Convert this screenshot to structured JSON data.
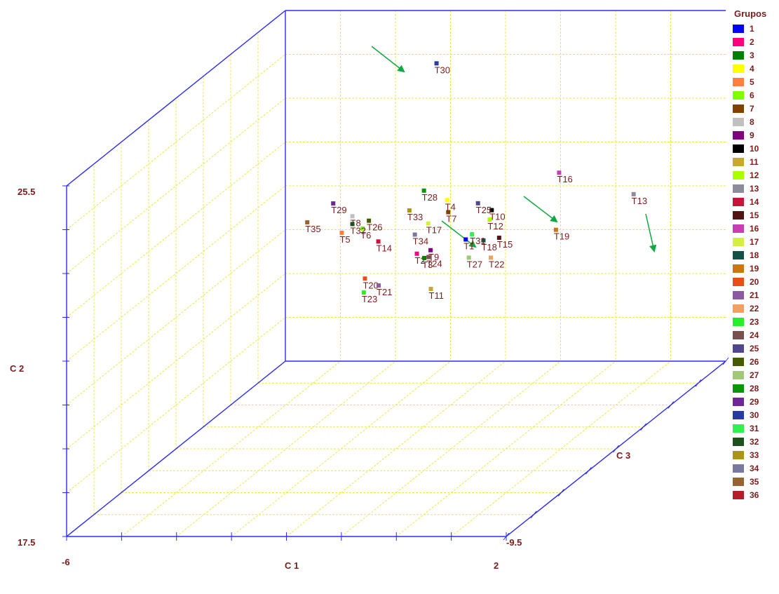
{
  "chart_data": {
    "type": "scatter",
    "subtype": "3d",
    "xlabel": "C 1",
    "ylabel": "C 2",
    "zlabel": "C 3",
    "x_ticklabels": [
      "-6",
      "2"
    ],
    "y_ticklabels": [
      "17.5",
      "25.5"
    ],
    "z_ticklabels": [
      "-9.5"
    ],
    "grid": true,
    "legend": {
      "title": "Grupos",
      "placement": "right",
      "entries": [
        {
          "label": "1",
          "color": "#0000ff"
        },
        {
          "label": "2",
          "color": "#ff007f"
        },
        {
          "label": "3",
          "color": "#008000"
        },
        {
          "label": "4",
          "color": "#ffff00"
        },
        {
          "label": "5",
          "color": "#ff7f40"
        },
        {
          "label": "6",
          "color": "#7fff00"
        },
        {
          "label": "7",
          "color": "#804000"
        },
        {
          "label": "8",
          "color": "#c0c0c0"
        },
        {
          "label": "9",
          "color": "#800080"
        },
        {
          "label": "10",
          "color": "#000000"
        },
        {
          "label": "11",
          "color": "#c8a832"
        },
        {
          "label": "12",
          "color": "#aaff00"
        },
        {
          "label": "13",
          "color": "#8c8c9c"
        },
        {
          "label": "14",
          "color": "#c8143c"
        },
        {
          "label": "15",
          "color": "#501414"
        },
        {
          "label": "16",
          "color": "#c83cb4"
        },
        {
          "label": "17",
          "color": "#d2f03c"
        },
        {
          "label": "18",
          "color": "#145046"
        },
        {
          "label": "19",
          "color": "#c87814"
        },
        {
          "label": "20",
          "color": "#e65014"
        },
        {
          "label": "21",
          "color": "#8c5aa0"
        },
        {
          "label": "22",
          "color": "#f0a064"
        },
        {
          "label": "23",
          "color": "#28f028"
        },
        {
          "label": "24",
          "color": "#785050"
        },
        {
          "label": "25",
          "color": "#50468c"
        },
        {
          "label": "26",
          "color": "#465a00"
        },
        {
          "label": "27",
          "color": "#a0c878"
        },
        {
          "label": "28",
          "color": "#0a960a"
        },
        {
          "label": "29",
          "color": "#6e2896"
        },
        {
          "label": "30",
          "color": "#283ca0"
        },
        {
          "label": "31",
          "color": "#32f050"
        },
        {
          "label": "32",
          "color": "#1e501e"
        },
        {
          "label": "33",
          "color": "#aa9614"
        },
        {
          "label": "34",
          "color": "#7878a0"
        },
        {
          "label": "35",
          "color": "#966432"
        },
        {
          "label": "36",
          "color": "#b41e28"
        }
      ]
    },
    "points": [
      {
        "label": "T1",
        "group": 1,
        "x": 1.1,
        "y": 23.5,
        "z": 5.8
      },
      {
        "label": "T2",
        "group": 2,
        "x": -0.2,
        "y": 23.2,
        "z": 5.1
      },
      {
        "label": "T4",
        "group": 4,
        "x": 0.8,
        "y": 25.3,
        "z": 5.0
      },
      {
        "label": "T5",
        "group": 5,
        "x": -2.7,
        "y": 23.9,
        "z": 5.4
      },
      {
        "label": "T6",
        "group": 6,
        "x": -2.0,
        "y": 24.1,
        "z": 5.3
      },
      {
        "label": "T7",
        "group": 7,
        "x": 0.8,
        "y": 24.8,
        "z": 5.1
      },
      {
        "label": "T8",
        "group": 8,
        "x": -2.4,
        "y": 24.5,
        "z": 5.5
      },
      {
        "label": "T9",
        "group": 9,
        "x": 0.2,
        "y": 23.3,
        "z": 5.2
      },
      {
        "label": "T10",
        "group": 10,
        "x": 2.0,
        "y": 24.7,
        "z": 5.6
      },
      {
        "label": "T11",
        "group": 11,
        "x": 0.1,
        "y": 21.7,
        "z": 5.5
      },
      {
        "label": "T12",
        "group": 12,
        "x": 1.9,
        "y": 24.3,
        "z": 5.7
      },
      {
        "label": "T13",
        "group": 13,
        "x": 6.3,
        "y": 25.1,
        "z": 6.2
      },
      {
        "label": "T14",
        "group": 14,
        "x": -1.5,
        "y": 23.6,
        "z": 5.3
      },
      {
        "label": "T15",
        "group": 15,
        "x": 2.2,
        "y": 23.6,
        "z": 5.7
      },
      {
        "label": "T16",
        "group": 16,
        "x": 4.0,
        "y": 26.0,
        "z": 6.0
      },
      {
        "label": "T17",
        "group": 17,
        "x": 0.2,
        "y": 24.4,
        "z": 5.0
      },
      {
        "label": "T18",
        "group": 18,
        "x": 1.7,
        "y": 23.5,
        "z": 5.7
      },
      {
        "label": "T19",
        "group": 19,
        "x": 3.9,
        "y": 23.8,
        "z": 6.0
      },
      {
        "label": "T20",
        "group": 20,
        "x": -2.0,
        "y": 22.1,
        "z": 5.5
      },
      {
        "label": "T21",
        "group": 21,
        "x": -1.6,
        "y": 21.8,
        "z": 5.6
      },
      {
        "label": "T22",
        "group": 22,
        "x": 1.9,
        "y": 22.8,
        "z": 5.8
      },
      {
        "label": "T23",
        "group": 23,
        "x": -2.0,
        "y": 21.6,
        "z": 5.4
      },
      {
        "label": "T24",
        "group": 24,
        "x": 0.1,
        "y": 23.0,
        "z": 5.3
      },
      {
        "label": "T25",
        "group": 25,
        "x": 1.6,
        "y": 25.0,
        "z": 5.5
      },
      {
        "label": "T26",
        "group": 26,
        "x": -1.8,
        "y": 24.4,
        "z": 5.3
      },
      {
        "label": "T27",
        "group": 27,
        "x": 1.2,
        "y": 22.8,
        "z": 5.8
      },
      {
        "label": "T28",
        "group": 28,
        "x": 0.1,
        "y": 25.7,
        "z": 4.9
      },
      {
        "label": "T29",
        "group": 29,
        "x": -2.9,
        "y": 25.1,
        "z": 5.2
      },
      {
        "label": "T30",
        "group": 30,
        "x": 0.5,
        "y": 30.6,
        "z": 4.9
      },
      {
        "label": "T31",
        "group": 31,
        "x": 1.3,
        "y": 23.7,
        "z": 5.8
      },
      {
        "label": "T32",
        "group": 32,
        "x": -2.4,
        "y": 24.2,
        "z": 5.5
      },
      {
        "label": "T33",
        "group": 33,
        "x": -0.4,
        "y": 24.9,
        "z": 5.0
      },
      {
        "label": "T34",
        "group": 34,
        "x": -0.3,
        "y": 23.9,
        "z": 5.2
      },
      {
        "label": "T35",
        "group": 35,
        "x": -3.8,
        "y": 24.3,
        "z": 5.4
      },
      {
        "label": "T3",
        "group": 3,
        "x": 0.0,
        "y": 23.0,
        "z": 5.2
      }
    ]
  }
}
